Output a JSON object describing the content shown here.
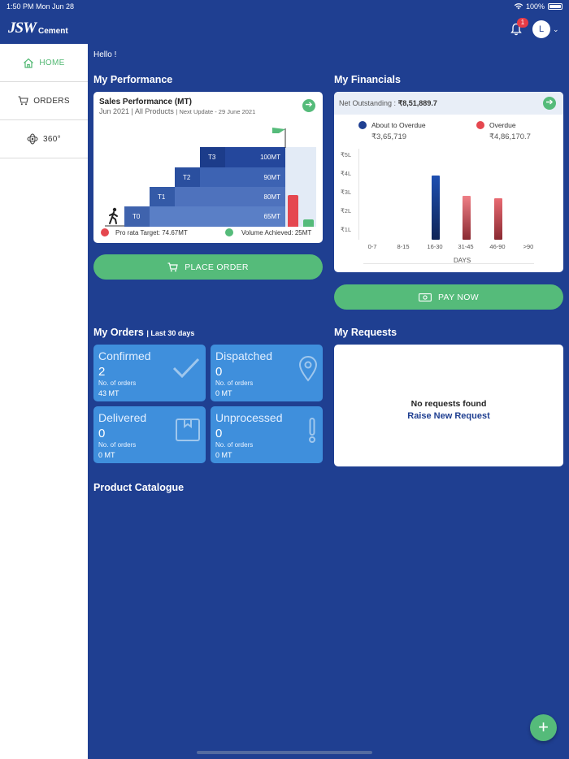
{
  "status": {
    "time": "1:50 PM  Mon Jun 28",
    "battery": "100%"
  },
  "header": {
    "brand": "JSW",
    "brand_sub": "Cement",
    "notif_count": "1",
    "avatar_letter": "L"
  },
  "sidebar": {
    "items": [
      {
        "label": "HOME",
        "icon": "home-icon",
        "active": true
      },
      {
        "label": "ORDERS",
        "icon": "cart-icon",
        "active": false
      },
      {
        "label": "360°",
        "icon": "360-icon",
        "active": false
      }
    ]
  },
  "main": {
    "greeting": "Hello !",
    "performance": {
      "section_title": "My Performance",
      "card_title": "Sales Performance (MT)",
      "period": "Jun 2021 | All Products",
      "update": "| Next Update - 29 June 2021",
      "tiers": [
        {
          "name": "T0",
          "target": "65MT"
        },
        {
          "name": "T1",
          "target": "80MT"
        },
        {
          "name": "T2",
          "target": "90MT"
        },
        {
          "name": "T3",
          "target": "100MT"
        }
      ],
      "pro_rata_label": "Pro rata Target: 74.67MT",
      "achieved_label": "Volume Achieved: 25MT",
      "pro_rata_color": "#e5474f",
      "achieved_color": "#55bb7a"
    },
    "place_order_label": "PLACE ORDER",
    "financials": {
      "section_title": "My Financials",
      "outstanding_label": "Net Outstanding :",
      "outstanding_value": "₹8,51,889.7",
      "legend": [
        {
          "name": "About to Overdue",
          "amount": "₹3,65,719",
          "color": "#1f3f91"
        },
        {
          "name": "Overdue",
          "amount": "₹4,86,170.7",
          "color": "#e5474f"
        }
      ],
      "y_ticks": [
        "₹5L",
        "₹4L",
        "₹3L",
        "₹2L",
        "₹1L"
      ],
      "x_ticks": [
        "0-7",
        "8-15",
        "16-30",
        "31-45",
        "46-90",
        ">90"
      ],
      "x_label": "DAYS"
    },
    "pay_now_label": "PAY NOW",
    "orders": {
      "section_title": "My Orders",
      "section_sub": "| Last 30 days",
      "tiles": [
        {
          "title": "Confirmed",
          "count": "2",
          "count_label": "No. of orders",
          "mt": "43 MT",
          "icon": "check-icon"
        },
        {
          "title": "Dispatched",
          "count": "0",
          "count_label": "No. of orders",
          "mt": "0 MT",
          "icon": "location-pin-icon"
        },
        {
          "title": "Delivered",
          "count": "0",
          "count_label": "No. of orders",
          "mt": "0 MT",
          "icon": "box-icon"
        },
        {
          "title": "Unprocessed",
          "count": "0",
          "count_label": "No. of orders",
          "mt": "0 MT",
          "icon": "exclamation-icon"
        }
      ]
    },
    "requests": {
      "section_title": "My Requests",
      "empty_text": "No requests found",
      "raise_link": "Raise New Request"
    },
    "catalogue_title": "Product Catalogue"
  }
}
